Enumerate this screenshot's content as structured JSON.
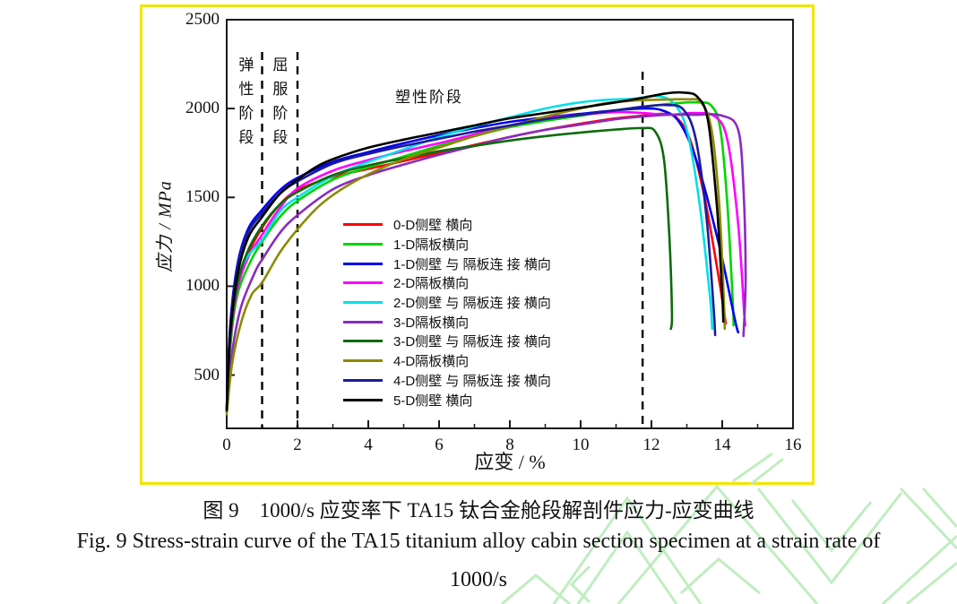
{
  "page": {
    "background": "#ffffff"
  },
  "figure_box": {
    "border_color": "#f2e500"
  },
  "watermark": {
    "color": "#c0edc0",
    "polylines": [
      "618,674 700,556 782,674",
      "645,674 700,594 755,674",
      "690,674 800,543 912,674",
      "658,632 638,652 658,672",
      "846,545 928,650 1006,550",
      "884,558 928,614 972,560",
      "818,537 862,506",
      "838,540 874,512",
      "1005,545 1068,612",
      "1030,545 1068,588",
      "985,674 1068,598",
      "1012,674 1068,628",
      "560,674 598,642 636,674",
      "760,662 802,624 848,662"
    ]
  },
  "captions": {
    "chinese": "图 9　1000/s 应变率下 TA15 钛合金舱段解剖件应力-应变曲线",
    "english_line1": "Fig. 9 Stress-strain curve of the TA15 titanium alloy cabin section specimen at a strain rate of",
    "english_line2": "1000/s"
  },
  "chart_data": {
    "type": "line",
    "title": "",
    "xlabel": "应变 / %",
    "ylabel": "应力 / MPa",
    "xlim": [
      0,
      16
    ],
    "ylim": [
      200,
      2500
    ],
    "x_major_ticks": [
      0,
      2,
      4,
      6,
      8,
      10,
      12,
      14,
      16
    ],
    "x_minor_ticks": [
      1,
      3,
      5,
      7,
      9,
      11,
      13,
      15
    ],
    "y_ticks": [
      500,
      1000,
      1500,
      2000,
      2500
    ],
    "grid": false,
    "legend_position": "inside-center",
    "axis_color": "#1a1a1a",
    "stage_annotations": [
      {
        "label": "弹性阶段",
        "orientation": "vertical",
        "strain_center": 0.5
      },
      {
        "label": "屈服阶段",
        "orientation": "vertical",
        "strain_center": 1.5
      },
      {
        "label": "塑性阶段",
        "orientation": "horizontal",
        "strain_center": 5.6
      }
    ],
    "dashed_lines": [
      {
        "strain": 1.0
      },
      {
        "strain": 2.0
      },
      {
        "strain": 11.75
      }
    ],
    "series": [
      {
        "name": "0-D侧壁 横向",
        "color": "#ff0000",
        "points": [
          [
            0,
            300
          ],
          [
            0.1,
            700
          ],
          [
            0.3,
            1000
          ],
          [
            0.6,
            1180
          ],
          [
            1,
            1330
          ],
          [
            1.5,
            1460
          ],
          [
            2,
            1540
          ],
          [
            3,
            1615
          ],
          [
            4,
            1660
          ],
          [
            5,
            1705
          ],
          [
            6,
            1750
          ],
          [
            7,
            1795
          ],
          [
            8,
            1840
          ],
          [
            9,
            1880
          ],
          [
            10,
            1915
          ],
          [
            11,
            1945
          ],
          [
            11.75,
            1960
          ],
          [
            12.3,
            1970
          ],
          [
            12.7,
            1950
          ],
          [
            13.1,
            1820
          ],
          [
            13.5,
            1500
          ],
          [
            13.9,
            1050
          ],
          [
            14.1,
            790
          ]
        ]
      },
      {
        "name": "1-D隔板横向",
        "color": "#00d400",
        "points": [
          [
            0,
            300
          ],
          [
            0.1,
            650
          ],
          [
            0.3,
            950
          ],
          [
            0.7,
            1150
          ],
          [
            1,
            1250
          ],
          [
            1.5,
            1390
          ],
          [
            2,
            1480
          ],
          [
            3,
            1600
          ],
          [
            4,
            1670
          ],
          [
            5,
            1730
          ],
          [
            6,
            1790
          ],
          [
            7,
            1845
          ],
          [
            8,
            1895
          ],
          [
            9,
            1930
          ],
          [
            10,
            1960
          ],
          [
            11,
            1990
          ],
          [
            12,
            2015
          ],
          [
            12.7,
            2030
          ],
          [
            13.3,
            2035
          ],
          [
            13.7,
            2015
          ],
          [
            13.95,
            1880
          ],
          [
            14.15,
            1450
          ],
          [
            14.3,
            900
          ],
          [
            14.32,
            780
          ]
        ]
      },
      {
        "name": "1-D侧壁 与 隔板连 接  横向",
        "color": "#0000ee",
        "points": [
          [
            0,
            320
          ],
          [
            0.1,
            780
          ],
          [
            0.3,
            1120
          ],
          [
            0.6,
            1320
          ],
          [
            1,
            1430
          ],
          [
            1.5,
            1540
          ],
          [
            2,
            1610
          ],
          [
            3,
            1700
          ],
          [
            4,
            1755
          ],
          [
            5,
            1805
          ],
          [
            6,
            1850
          ],
          [
            7,
            1890
          ],
          [
            8,
            1925
          ],
          [
            9,
            1950
          ],
          [
            10,
            1970
          ],
          [
            11,
            1990
          ],
          [
            11.75,
            2000
          ],
          [
            12.3,
            1990
          ],
          [
            12.8,
            1920
          ],
          [
            13.3,
            1690
          ],
          [
            13.9,
            1240
          ],
          [
            14.35,
            820
          ],
          [
            14.45,
            740
          ]
        ]
      },
      {
        "name": "2-D隔板横向",
        "color": "#ff00ff",
        "points": [
          [
            0,
            300
          ],
          [
            0.1,
            680
          ],
          [
            0.3,
            980
          ],
          [
            0.6,
            1160
          ],
          [
            1,
            1290
          ],
          [
            1.5,
            1440
          ],
          [
            2,
            1550
          ],
          [
            3,
            1650
          ],
          [
            4,
            1710
          ],
          [
            5,
            1760
          ],
          [
            6,
            1805
          ],
          [
            7,
            1855
          ],
          [
            8,
            1905
          ],
          [
            9,
            1945
          ],
          [
            10,
            1965
          ],
          [
            11,
            1980
          ],
          [
            11.75,
            1975
          ],
          [
            12.5,
            1965
          ],
          [
            13.2,
            1975
          ],
          [
            13.8,
            1955
          ],
          [
            14.15,
            1820
          ],
          [
            14.45,
            1350
          ],
          [
            14.62,
            850
          ],
          [
            14.65,
            780
          ]
        ]
      },
      {
        "name": "2-D侧壁 与 隔板连 接  横向",
        "color": "#00dfe8",
        "points": [
          [
            0,
            310
          ],
          [
            0.1,
            720
          ],
          [
            0.3,
            1030
          ],
          [
            0.6,
            1170
          ],
          [
            1,
            1260
          ],
          [
            1.5,
            1420
          ],
          [
            2,
            1500
          ],
          [
            3,
            1620
          ],
          [
            4,
            1700
          ],
          [
            5,
            1770
          ],
          [
            6,
            1840
          ],
          [
            7,
            1900
          ],
          [
            8,
            1950
          ],
          [
            9,
            2000
          ],
          [
            10,
            2035
          ],
          [
            10.8,
            2050
          ],
          [
            11.5,
            2055
          ],
          [
            12.1,
            2070
          ],
          [
            12.6,
            2035
          ],
          [
            13,
            1880
          ],
          [
            13.35,
            1480
          ],
          [
            13.65,
            950
          ],
          [
            13.72,
            760
          ]
        ]
      },
      {
        "name": "3-D隔板横向",
        "color": "#8a2bbe",
        "points": [
          [
            0,
            290
          ],
          [
            0.15,
            620
          ],
          [
            0.4,
            880
          ],
          [
            0.8,
            1080
          ],
          [
            1,
            1150
          ],
          [
            1.5,
            1300
          ],
          [
            2,
            1400
          ],
          [
            3,
            1545
          ],
          [
            4,
            1625
          ],
          [
            5,
            1685
          ],
          [
            6,
            1740
          ],
          [
            7,
            1790
          ],
          [
            8,
            1840
          ],
          [
            9,
            1880
          ],
          [
            10,
            1910
          ],
          [
            11,
            1940
          ],
          [
            11.75,
            1955
          ],
          [
            12.5,
            1965
          ],
          [
            13.2,
            1965
          ],
          [
            14,
            1960
          ],
          [
            14.45,
            1880
          ],
          [
            14.6,
            1550
          ],
          [
            14.66,
            1050
          ],
          [
            14.6,
            720
          ]
        ]
      },
      {
        "name": "3-D侧壁 与 隔板连 接  横向",
        "color": "#0b6b0b",
        "points": [
          [
            0,
            300
          ],
          [
            0.1,
            700
          ],
          [
            0.3,
            1010
          ],
          [
            0.6,
            1200
          ],
          [
            1,
            1340
          ],
          [
            1.5,
            1460
          ],
          [
            2,
            1530
          ],
          [
            3,
            1625
          ],
          [
            4,
            1680
          ],
          [
            5,
            1720
          ],
          [
            6,
            1760
          ],
          [
            7,
            1790
          ],
          [
            8,
            1820
          ],
          [
            9,
            1845
          ],
          [
            10,
            1865
          ],
          [
            11,
            1882
          ],
          [
            11.75,
            1890
          ],
          [
            12.1,
            1872
          ],
          [
            12.35,
            1720
          ],
          [
            12.5,
            1300
          ],
          [
            12.58,
            850
          ],
          [
            12.55,
            760
          ]
        ]
      },
      {
        "name": "4-D隔板横向",
        "color": "#8b8b00",
        "points": [
          [
            0,
            280
          ],
          [
            0.15,
            560
          ],
          [
            0.4,
            790
          ],
          [
            0.7,
            950
          ],
          [
            1,
            1020
          ],
          [
            1.5,
            1190
          ],
          [
            2,
            1320
          ],
          [
            2.6,
            1450
          ],
          [
            3.2,
            1540
          ],
          [
            4,
            1630
          ],
          [
            5,
            1715
          ],
          [
            6,
            1780
          ],
          [
            7,
            1845
          ],
          [
            8,
            1900
          ],
          [
            9,
            1955
          ],
          [
            10,
            2000
          ],
          [
            10.7,
            2030
          ],
          [
            11.5,
            2045
          ],
          [
            12.3,
            2050
          ],
          [
            13,
            2052
          ],
          [
            13.4,
            2035
          ],
          [
            13.7,
            1880
          ],
          [
            13.92,
            1450
          ],
          [
            14.05,
            900
          ],
          [
            14.07,
            760
          ]
        ]
      },
      {
        "name": "4-D侧壁 与 隔板连 接  横向",
        "color": "#1c1c99",
        "points": [
          [
            0,
            310
          ],
          [
            0.1,
            760
          ],
          [
            0.3,
            1100
          ],
          [
            0.6,
            1300
          ],
          [
            1,
            1410
          ],
          [
            1.5,
            1520
          ],
          [
            2,
            1590
          ],
          [
            3,
            1690
          ],
          [
            4,
            1745
          ],
          [
            5,
            1790
          ],
          [
            6,
            1830
          ],
          [
            7,
            1870
          ],
          [
            8,
            1905
          ],
          [
            9,
            1940
          ],
          [
            10,
            1965
          ],
          [
            11,
            1990
          ],
          [
            11.75,
            2010
          ],
          [
            12.4,
            2020
          ],
          [
            12.9,
            1995
          ],
          [
            13.25,
            1830
          ],
          [
            13.55,
            1400
          ],
          [
            13.75,
            900
          ],
          [
            13.8,
            725
          ]
        ]
      },
      {
        "name": "5-D侧壁 横向",
        "color": "#000000",
        "points": [
          [
            0,
            300
          ],
          [
            0.1,
            730
          ],
          [
            0.3,
            1060
          ],
          [
            0.6,
            1270
          ],
          [
            1,
            1390
          ],
          [
            1.5,
            1520
          ],
          [
            2,
            1600
          ],
          [
            2.6,
            1680
          ],
          [
            3.2,
            1730
          ],
          [
            4,
            1780
          ],
          [
            5,
            1825
          ],
          [
            6,
            1865
          ],
          [
            7,
            1905
          ],
          [
            8,
            1945
          ],
          [
            9,
            1975
          ],
          [
            10,
            2005
          ],
          [
            11,
            2035
          ],
          [
            11.75,
            2060
          ],
          [
            12.4,
            2085
          ],
          [
            12.9,
            2090
          ],
          [
            13.3,
            2065
          ],
          [
            13.6,
            1930
          ],
          [
            13.85,
            1450
          ],
          [
            14,
            950
          ],
          [
            14.03,
            800
          ]
        ]
      }
    ]
  }
}
